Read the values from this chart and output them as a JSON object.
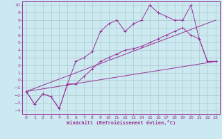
{
  "xlabel": "Windchill (Refroidissement éolien,°C)",
  "bg_color": "#cce8f0",
  "grid_color": "#aacccc",
  "line_color": "#993399",
  "xlim": [
    -0.5,
    23.5
  ],
  "ylim": [
    -4.5,
    10.5
  ],
  "xticks": [
    0,
    1,
    2,
    3,
    4,
    5,
    6,
    7,
    8,
    9,
    10,
    11,
    12,
    13,
    14,
    15,
    16,
    17,
    18,
    19,
    20,
    21,
    22,
    23
  ],
  "yticks": [
    -4,
    -3,
    -2,
    -1,
    0,
    1,
    2,
    3,
    4,
    5,
    6,
    7,
    8,
    9,
    10
  ],
  "line1_x": [
    0,
    1,
    2,
    3,
    4,
    5,
    6,
    7,
    8,
    9,
    10,
    11,
    12,
    13,
    14,
    15,
    16,
    17,
    18,
    19,
    20,
    21,
    22,
    23
  ],
  "line1_y": [
    -1.5,
    -3.2,
    -1.8,
    -2.2,
    -3.8,
    -0.5,
    2.5,
    3.0,
    3.8,
    6.5,
    7.5,
    8.0,
    6.5,
    7.5,
    8.0,
    10.0,
    9.0,
    8.5,
    8.0,
    8.0,
    10.0,
    5.5,
    2.5,
    2.5
  ],
  "line2_x": [
    0,
    1,
    2,
    3,
    4,
    5,
    6,
    7,
    8,
    9,
    10,
    11,
    12,
    13,
    14,
    15,
    16,
    17,
    18,
    19,
    20,
    21,
    22,
    23
  ],
  "line2_y": [
    -1.5,
    -3.2,
    -1.8,
    -2.2,
    -3.8,
    -0.5,
    -0.5,
    0.5,
    1.5,
    2.5,
    3.0,
    3.5,
    4.0,
    4.2,
    4.5,
    5.0,
    5.5,
    6.0,
    6.5,
    7.0,
    6.0,
    5.5,
    2.5,
    2.5
  ],
  "line3_x": [
    0,
    23
  ],
  "line3_y": [
    -1.5,
    8.0
  ],
  "line4_x": [
    0,
    23
  ],
  "line4_y": [
    -1.5,
    2.5
  ]
}
